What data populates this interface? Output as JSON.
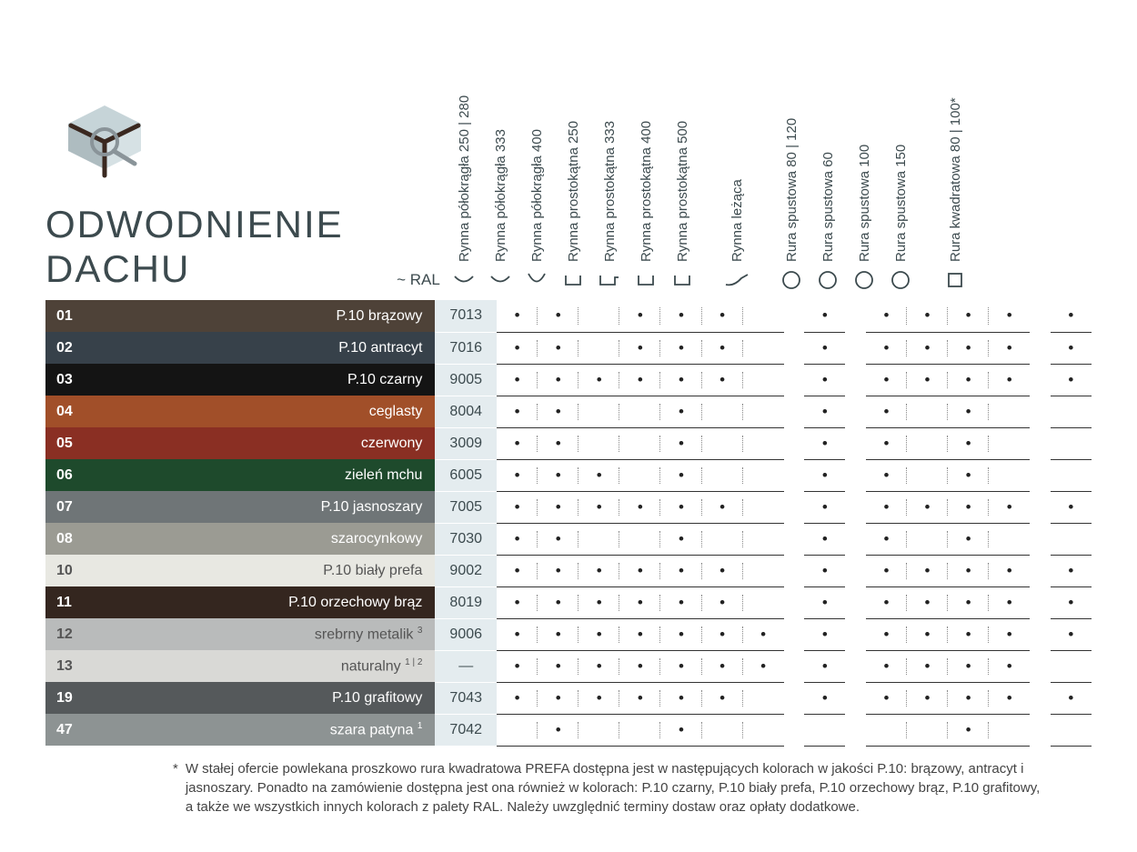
{
  "title_line1": "ODWODNIENIE",
  "title_line2": "DACHU",
  "ral_header": "~ RAL",
  "columns": [
    {
      "label": "Rynna półokrągła 250 | 280",
      "shape": "arc-shallow"
    },
    {
      "label": "Rynna półokrągła 333",
      "shape": "arc-shallow"
    },
    {
      "label": "Rynna półokrągła 400",
      "shape": "arc-deep"
    },
    {
      "label": "Rynna prostokątna 250",
      "shape": "rect"
    },
    {
      "label": "Rynna prostokątna 333",
      "shape": "rect-lip"
    },
    {
      "label": "Rynna prostokątna 400",
      "shape": "rect"
    },
    {
      "label": "Rynna prostokątna 500",
      "shape": "rect"
    },
    {
      "label": "Rynna leżąca",
      "shape": "swoosh",
      "gap_before": true
    },
    {
      "label": "Rura spustowa 80 | 120",
      "shape": "circle",
      "gap_before": true
    },
    {
      "label": "Rura spustowa 60",
      "shape": "circle"
    },
    {
      "label": "Rura spustowa 100",
      "shape": "circle"
    },
    {
      "label": "Rura spustowa 150",
      "shape": "circle"
    },
    {
      "label": "Rura kwadratowa 80 | 100*",
      "shape": "square",
      "gap_before": true
    }
  ],
  "rows": [
    {
      "num": "01",
      "name": "P.10 brązowy",
      "ral": "7013",
      "bg": "#4e4238",
      "dots": [
        1,
        1,
        0,
        1,
        1,
        1,
        0,
        1,
        1,
        1,
        1,
        1,
        1
      ]
    },
    {
      "num": "02",
      "name": "P.10 antracyt",
      "ral": "7016",
      "bg": "#37414a",
      "dots": [
        1,
        1,
        0,
        1,
        1,
        1,
        0,
        1,
        1,
        1,
        1,
        1,
        1
      ]
    },
    {
      "num": "03",
      "name": "P.10 czarny",
      "ral": "9005",
      "bg": "#141414",
      "dots": [
        1,
        1,
        1,
        1,
        1,
        1,
        0,
        1,
        1,
        1,
        1,
        1,
        1
      ]
    },
    {
      "num": "04",
      "name": "ceglasty",
      "ral": "8004",
      "bg": "#a14f29",
      "dots": [
        1,
        1,
        0,
        0,
        1,
        0,
        0,
        1,
        1,
        0,
        1,
        0,
        0
      ]
    },
    {
      "num": "05",
      "name": "czerwony",
      "ral": "3009",
      "bg": "#8a2f23",
      "dots": [
        1,
        1,
        0,
        0,
        1,
        0,
        0,
        1,
        1,
        0,
        1,
        0,
        0
      ]
    },
    {
      "num": "06",
      "name": "zieleń mchu",
      "ral": "6005",
      "bg": "#1e4a2c",
      "dots": [
        1,
        1,
        1,
        0,
        1,
        0,
        0,
        1,
        1,
        0,
        1,
        0,
        0
      ]
    },
    {
      "num": "07",
      "name": "P.10 jasnoszary",
      "ral": "7005",
      "bg": "#6f7577",
      "dots": [
        1,
        1,
        1,
        1,
        1,
        1,
        0,
        1,
        1,
        1,
        1,
        1,
        1
      ]
    },
    {
      "num": "08",
      "name": "szarocynkowy",
      "ral": "7030",
      "bg": "#9b9b93",
      "dots": [
        1,
        1,
        0,
        0,
        1,
        0,
        0,
        1,
        1,
        0,
        1,
        0,
        0
      ]
    },
    {
      "num": "10",
      "name": "P.10 biały prefa",
      "ral": "9002",
      "bg": "#e8e8e2",
      "txt": "#555",
      "dots": [
        1,
        1,
        1,
        1,
        1,
        1,
        0,
        1,
        1,
        1,
        1,
        1,
        1
      ]
    },
    {
      "num": "11",
      "name": "P.10 orzechowy brąz",
      "ral": "8019",
      "bg": "#34261f",
      "dots": [
        1,
        1,
        1,
        1,
        1,
        1,
        0,
        1,
        1,
        1,
        1,
        1,
        1
      ]
    },
    {
      "num": "12",
      "name": "srebrny metalik",
      "sup": "3",
      "ral": "9006",
      "bg": "#b9bbbb",
      "txt": "#555",
      "dots": [
        1,
        1,
        1,
        1,
        1,
        1,
        1,
        1,
        1,
        1,
        1,
        1,
        1
      ]
    },
    {
      "num": "13",
      "name": "naturalny",
      "sup": "1 | 2",
      "ral": "—",
      "bg": "#d9d9d6",
      "txt": "#555",
      "dots": [
        1,
        1,
        1,
        1,
        1,
        1,
        1,
        1,
        1,
        1,
        1,
        1,
        0
      ]
    },
    {
      "num": "19",
      "name": "P.10 grafitowy",
      "ral": "7043",
      "bg": "#55595b",
      "dots": [
        1,
        1,
        1,
        1,
        1,
        1,
        0,
        1,
        1,
        1,
        1,
        1,
        1
      ]
    },
    {
      "num": "47",
      "name": "szara patyna",
      "sup": "1",
      "ral": "7042",
      "bg": "#8d9393",
      "bull": true,
      "dots": [
        0,
        1,
        0,
        0,
        1,
        0,
        0,
        0,
        0,
        0,
        1,
        0,
        0
      ]
    }
  ],
  "footnote_star": "*",
  "footnote_text": "W stałej ofercie powlekana proszkowo rura kwadratowa PREFA dostępna jest w następujących kolorach w jakości P.10: brązowy, antracyt i jasnoszary. Ponadto na zamówienie dostępna jest ona również w kolorach: P.10 czarny, P.10 biały prefa, P.10 orzechowy brąz, P.10 grafitowy, a także we wszystkich innych kolorach z palety RAL. Należy uwzględnić terminy dostaw oraz opłaty dodatkowe."
}
